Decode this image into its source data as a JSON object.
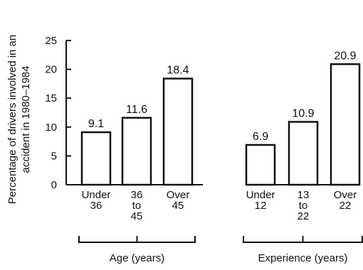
{
  "chart_data": {
    "type": "bar",
    "ylabel_lines": [
      "Percentage of drivers involved in an",
      "accident in 1980–1984"
    ],
    "ylim": [
      0,
      25
    ],
    "yticks": [
      0,
      5,
      10,
      15,
      20,
      25
    ],
    "groups": [
      {
        "name": "Age (years)",
        "categories": [
          [
            "Under",
            "36"
          ],
          [
            "36",
            "to",
            "45"
          ],
          [
            "Over",
            "45"
          ]
        ],
        "values": [
          9.1,
          11.6,
          18.4
        ],
        "value_labels": [
          "9.1",
          "11.6",
          "18.4"
        ]
      },
      {
        "name": "Experience (years)",
        "categories": [
          [
            "Under",
            "12"
          ],
          [
            "13",
            "to",
            "22"
          ],
          [
            "Over",
            "22"
          ]
        ],
        "values": [
          6.9,
          10.9,
          20.9
        ],
        "value_labels": [
          "6.9",
          "10.9",
          "20.9"
        ]
      }
    ],
    "grid": false,
    "bar_fill": "#ffffff",
    "bar_stroke": "#111111"
  }
}
